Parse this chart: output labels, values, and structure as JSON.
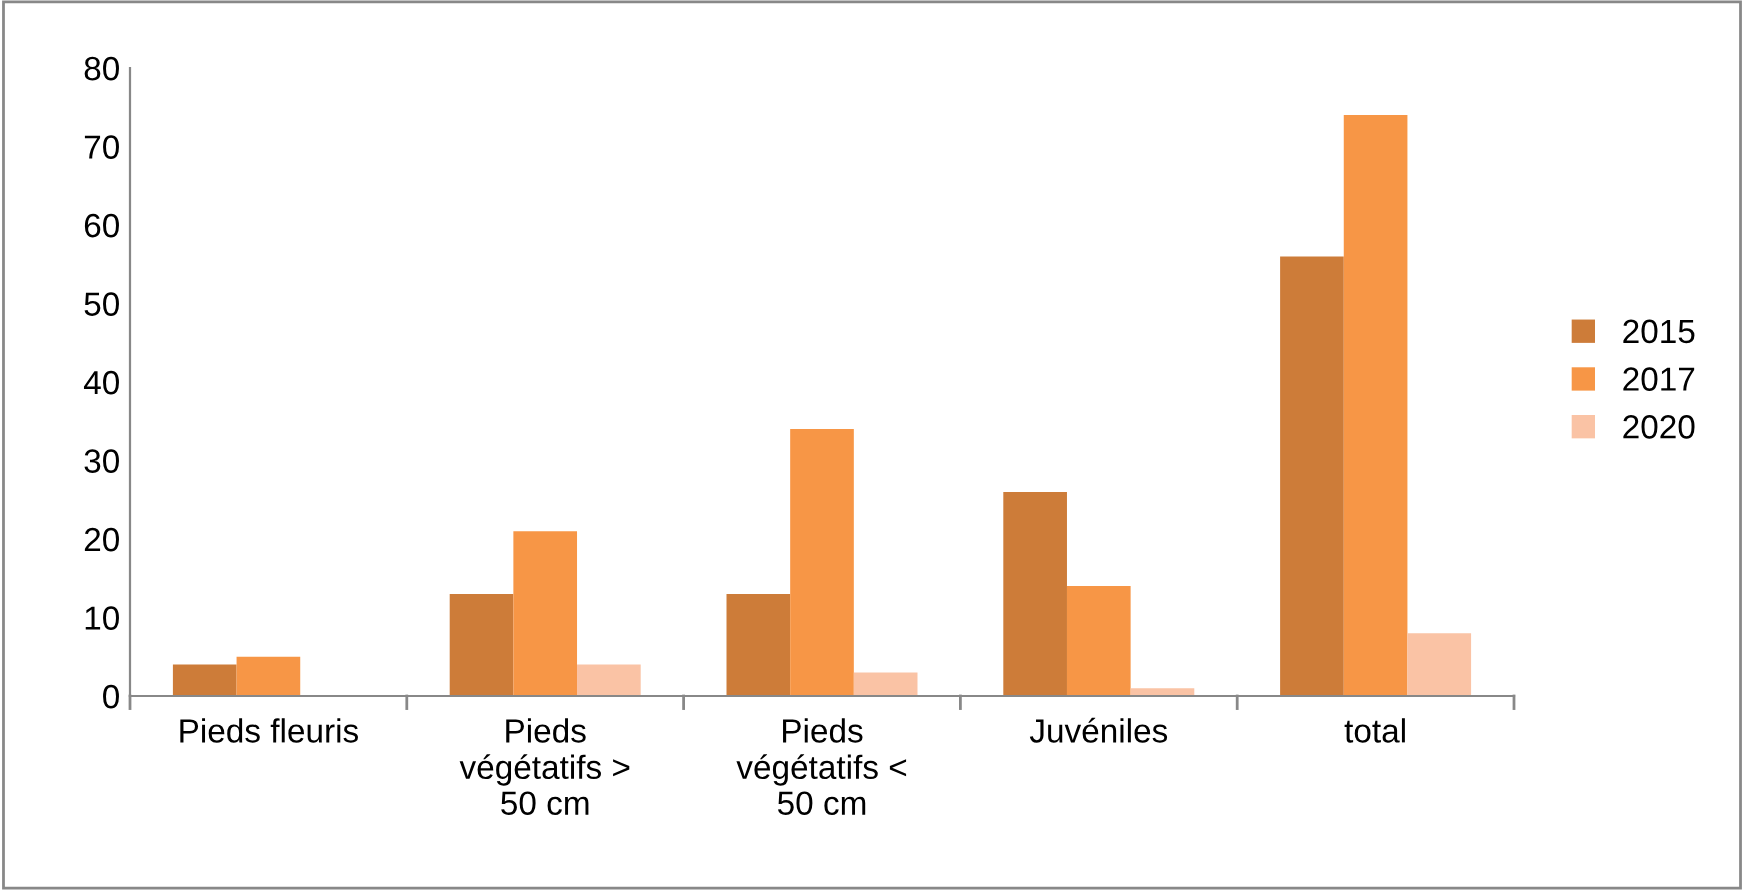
{
  "chart_data": {
    "type": "bar",
    "categories": [
      "Pieds fleuris",
      "Pieds\nvégétatifs >\n50 cm",
      "Pieds\nvégétatifs <\n50 cm",
      "Juvéniles",
      "total"
    ],
    "series": [
      {
        "name": "2015",
        "color": "#cd7c39",
        "values": [
          4,
          13,
          13,
          26,
          56
        ]
      },
      {
        "name": "2017",
        "color": "#f79646",
        "values": [
          5,
          21,
          34,
          14,
          74
        ]
      },
      {
        "name": "2020",
        "color": "#fac3a5",
        "values": [
          0,
          4,
          3,
          1,
          8
        ]
      }
    ],
    "ylim": [
      0,
      80
    ],
    "yticks": [
      0,
      10,
      20,
      30,
      40,
      50,
      60,
      70,
      80
    ],
    "grid": false,
    "legend": "right"
  }
}
